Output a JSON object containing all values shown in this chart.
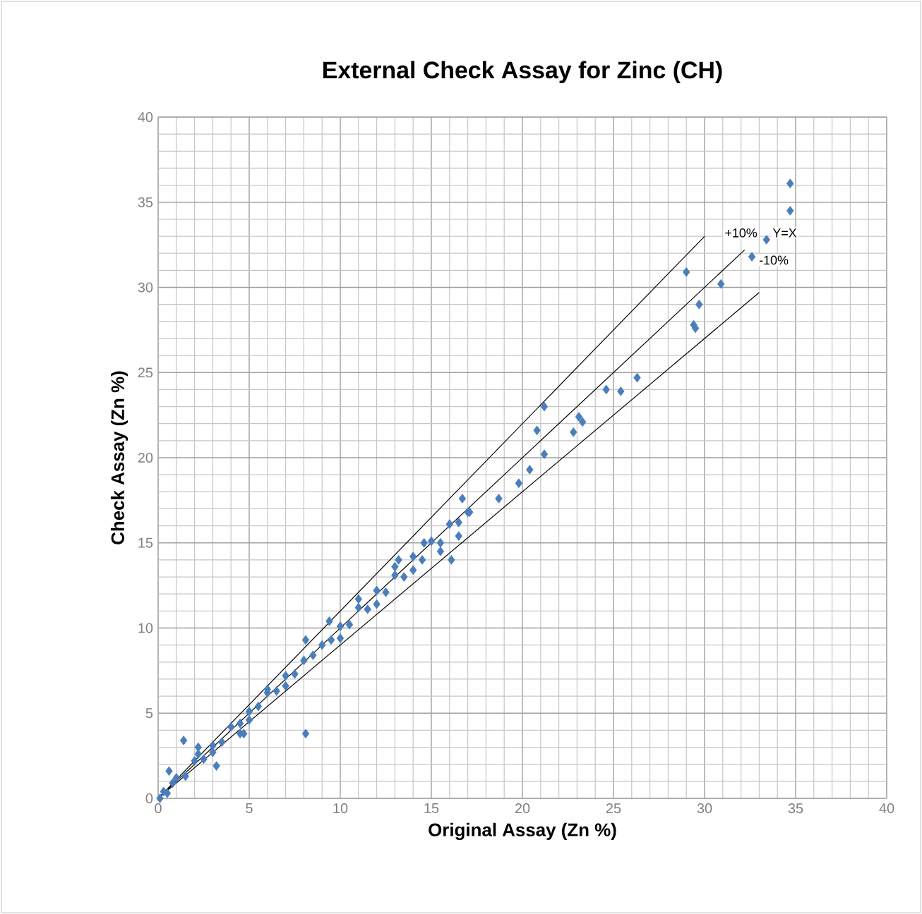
{
  "chart_data": {
    "type": "scatter",
    "title": "External Check Assay for Zinc (CH)",
    "xlabel": "Original Assay (Zn %)",
    "ylabel": "Check Assay (Zn %)",
    "xlim": [
      0,
      40
    ],
    "ylim": [
      0,
      40
    ],
    "xticks": [
      0,
      5,
      10,
      15,
      20,
      25,
      30,
      35,
      40
    ],
    "yticks": [
      0,
      5,
      10,
      15,
      20,
      25,
      30,
      35,
      40
    ],
    "grid": true,
    "marker": "diamond",
    "series": [
      {
        "color": "#4a7ebb",
        "x": [
          34.7,
          34.7,
          33.4,
          32.6,
          29.0,
          30.9,
          29.7,
          29.4,
          29.5,
          26.3,
          25.4,
          24.6,
          21.2,
          20.8,
          23.1,
          23.3,
          22.8,
          21.2,
          19.8,
          20.4,
          16.7,
          17.1,
          14.6,
          13.2,
          16.1,
          18.7,
          9.4,
          8.1,
          8.1,
          1.4,
          0.6,
          4.7,
          3.2,
          2.2,
          0.1,
          0.3,
          0.5,
          0.8,
          1.0,
          1.5,
          2.0,
          2.5,
          3.0,
          3.5,
          4.0,
          4.5,
          5.0,
          5.5,
          6.0,
          6.5,
          7.0,
          7.5,
          8.0,
          8.5,
          9.0,
          9.5,
          10.0,
          10.5,
          11.0,
          11.5,
          12.0,
          12.5,
          13.0,
          13.5,
          14.0,
          14.5,
          15.0,
          15.5,
          16.0,
          16.5,
          17.0,
          7.0,
          10.0,
          12.0,
          14.0,
          15.5,
          16.5,
          5.0,
          3.0,
          6.0,
          11.0,
          13.0,
          4.5,
          2.2
        ],
        "values": [
          36.1,
          34.5,
          32.8,
          31.8,
          30.9,
          30.2,
          29.0,
          27.8,
          27.6,
          24.7,
          23.9,
          24.0,
          23.0,
          21.6,
          22.4,
          22.1,
          21.5,
          20.2,
          18.5,
          19.3,
          17.6,
          16.8,
          15.0,
          14.0,
          14.0,
          17.6,
          10.4,
          9.3,
          3.8,
          3.4,
          1.6,
          3.8,
          1.9,
          3.0,
          0.0,
          0.4,
          0.3,
          0.9,
          1.2,
          1.3,
          2.2,
          2.3,
          3.1,
          3.3,
          4.2,
          4.4,
          5.1,
          5.4,
          6.2,
          6.3,
          7.2,
          7.3,
          8.1,
          8.4,
          9.0,
          9.3,
          10.1,
          10.2,
          11.2,
          11.1,
          12.2,
          12.1,
          13.1,
          13.0,
          14.2,
          14.0,
          15.1,
          15.0,
          16.1,
          16.2,
          16.8,
          6.6,
          9.4,
          11.4,
          13.4,
          14.5,
          15.4,
          4.6,
          2.7,
          6.4,
          11.7,
          13.6,
          3.8,
          2.6
        ]
      },
      {
        "type": "line",
        "color": "#000000",
        "marker": "none",
        "x": [
          0,
          30
        ],
        "values": [
          0,
          33
        ]
      },
      {
        "type": "line",
        "color": "#000000",
        "marker": "none",
        "x": [
          0,
          32.2
        ],
        "values": [
          0,
          32.2
        ]
      },
      {
        "type": "line",
        "color": "#000000",
        "marker": "none",
        "x": [
          0,
          33
        ],
        "values": [
          0,
          29.7
        ]
      }
    ],
    "annotations": [
      {
        "text": "+10%",
        "x": 32.0,
        "y": 33.2
      },
      {
        "text": "Y=X",
        "x": 34.4,
        "y": 33.2
      },
      {
        "text": "-10%",
        "x": 33.8,
        "y": 31.6
      }
    ]
  }
}
